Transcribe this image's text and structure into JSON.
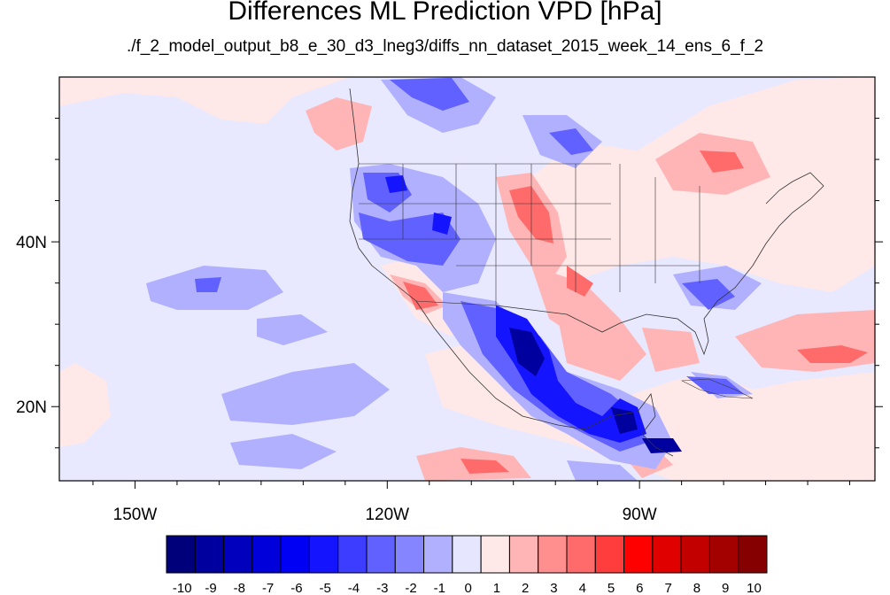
{
  "title": "Differences ML Prediction VPD [hPa]",
  "subtitle": "./f_2_model_output_b8_e_30_d3_lneg3/diffs_nn_dataset_2015_week_14_ens_6_f_2",
  "axes": {
    "x_ticks": [
      {
        "lon": -150,
        "label": "150W"
      },
      {
        "lon": -120,
        "label": "120W"
      },
      {
        "lon": -90,
        "label": "90W"
      }
    ],
    "y_ticks": [
      {
        "lat": 40,
        "label": "40N"
      },
      {
        "lat": 20,
        "label": "20N"
      }
    ],
    "lon_range": [
      -159,
      -62
    ],
    "lat_range": [
      11,
      60
    ]
  },
  "colorbar": {
    "labels": [
      "-10",
      "-9",
      "-8",
      "-7",
      "-6",
      "-5",
      "-4",
      "-3",
      "-2",
      "-1",
      "0",
      "1",
      "2",
      "3",
      "4",
      "5",
      "6",
      "7",
      "8",
      "9",
      "10"
    ],
    "colors": [
      "#00007a",
      "#00009e",
      "#0000bd",
      "#0000db",
      "#0000f5",
      "#1414ff",
      "#3d3dff",
      "#6161ff",
      "#8585ff",
      "#b0b0ff",
      "#e6e6ff",
      "#ffe8e8",
      "#ffb5b5",
      "#ff8f8f",
      "#ff6b6b",
      "#ff3d3d",
      "#ff0000",
      "#e00000",
      "#c20000",
      "#a30000",
      "#850000"
    ]
  }
}
